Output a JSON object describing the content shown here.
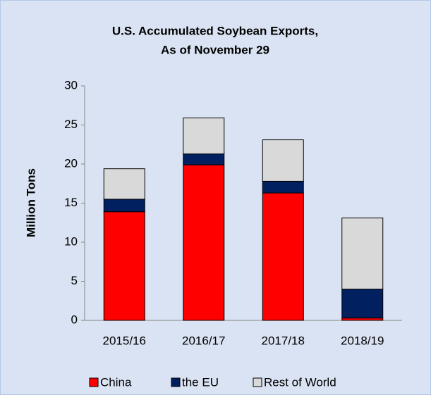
{
  "chart_data": {
    "type": "stacked_bar",
    "title": "U.S. Accumulated Soybean Exports,",
    "subtitle": "As of November 29",
    "y_label": "Million Tons",
    "categories": [
      "2015/16",
      "2016/17",
      "2017/18",
      "2018/19"
    ],
    "series": [
      {
        "name": "China",
        "color": "#ff0000",
        "values": [
          13.9,
          19.9,
          16.3,
          0.3
        ]
      },
      {
        "name": "the EU",
        "color": "#002060",
        "values": [
          1.6,
          1.4,
          1.5,
          3.7
        ]
      },
      {
        "name": "Rest of World",
        "color": "#d9d9d9",
        "values": [
          3.9,
          4.6,
          5.3,
          9.1
        ]
      }
    ],
    "ylim": [
      0,
      30
    ],
    "yticks": [
      0,
      5,
      10,
      15,
      20,
      25,
      30
    ]
  }
}
